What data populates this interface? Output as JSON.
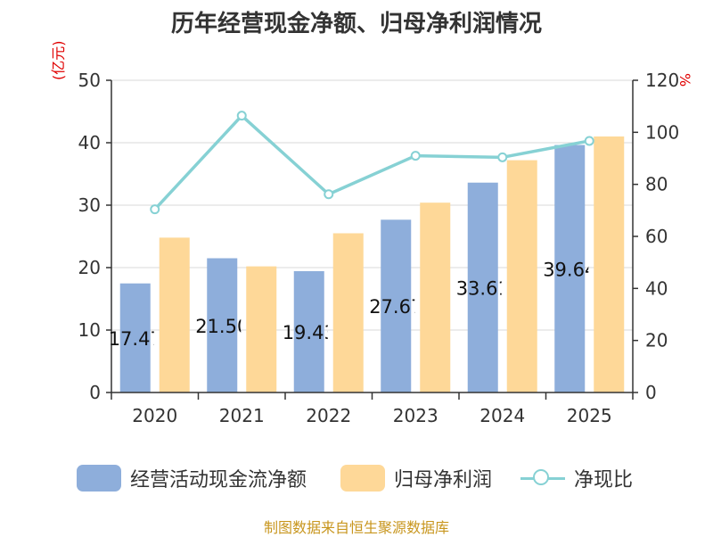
{
  "title": "历年经营现金净额、归母净利润情况",
  "source": "制图数据来自恒生聚源数据库",
  "colors": {
    "cashflow": "#8eaedb",
    "profit": "#fed898",
    "ratio": "#86d1d4",
    "unit": "#e00000",
    "source": "#c8961e"
  },
  "chart_data": {
    "type": "bar",
    "categories": [
      "2020",
      "2021",
      "2022",
      "2023",
      "2024",
      "2025"
    ],
    "left_axis": {
      "unit_label": "(亿元)",
      "ylim": [
        0,
        50
      ],
      "ticks": [
        "0",
        "10",
        "20",
        "30",
        "40",
        "50"
      ]
    },
    "right_axis": {
      "unit_label": "%",
      "ylim": [
        0,
        120
      ],
      "ticks": [
        "0",
        "20",
        "40",
        "60",
        "80",
        "100",
        "120"
      ]
    },
    "series": [
      {
        "name": "经营活动现金流净额",
        "type": "bar",
        "axis": "left",
        "values": [
          17.47,
          21.5,
          19.43,
          27.67,
          33.61,
          39.64
        ],
        "data_labels": [
          "17.47",
          "21.50",
          "19.43",
          "27.67",
          "33.61",
          "39.64"
        ]
      },
      {
        "name": "归母净利润",
        "type": "bar",
        "axis": "left",
        "values": [
          24.8,
          20.2,
          25.5,
          30.4,
          37.2,
          41.0
        ]
      },
      {
        "name": "净现比",
        "type": "line",
        "axis": "right",
        "values": [
          70.4,
          106.4,
          76.2,
          91.0,
          90.4,
          96.7
        ]
      }
    ],
    "grid": true,
    "legend_position": "bottom"
  }
}
